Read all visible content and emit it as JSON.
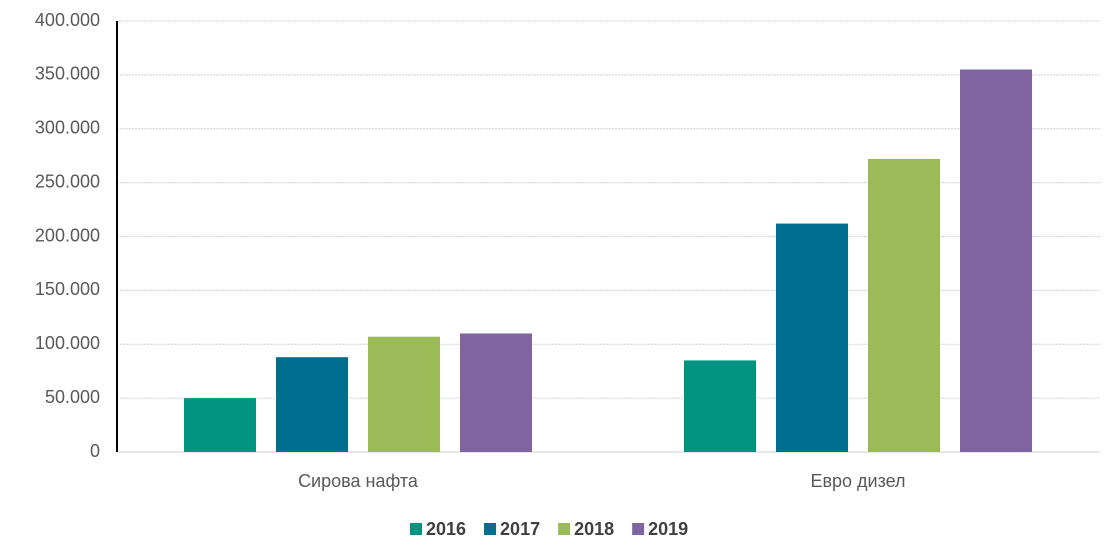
{
  "chart_data": {
    "type": "bar",
    "categories": [
      "Сирова нафта",
      "Евро дизел"
    ],
    "series": [
      {
        "name": "2016",
        "color": "#009380",
        "values": [
          50000,
          85000
        ]
      },
      {
        "name": "2017",
        "color": "#006e8f",
        "values": [
          88000,
          212000
        ]
      },
      {
        "name": "2018",
        "color": "#9bbb59",
        "values": [
          107000,
          272000
        ]
      },
      {
        "name": "2019",
        "color": "#8064a2",
        "values": [
          110000,
          355000
        ]
      }
    ],
    "ylim": [
      0,
      400000
    ],
    "yticks": [
      0,
      {
        "value": 50000,
        "label": "50.000"
      },
      {
        "value": 100000,
        "label": "100.000"
      },
      {
        "value": 150000,
        "label": "150.000"
      },
      {
        "value": 200000,
        "label": "200.000"
      },
      {
        "value": 250000,
        "label": "250.000"
      },
      {
        "value": 300000,
        "label": "300.000"
      },
      {
        "value": 350000,
        "label": "350.000"
      },
      {
        "value": 400000,
        "label": "400.000"
      }
    ],
    "grid": true,
    "legend": "bottom"
  }
}
